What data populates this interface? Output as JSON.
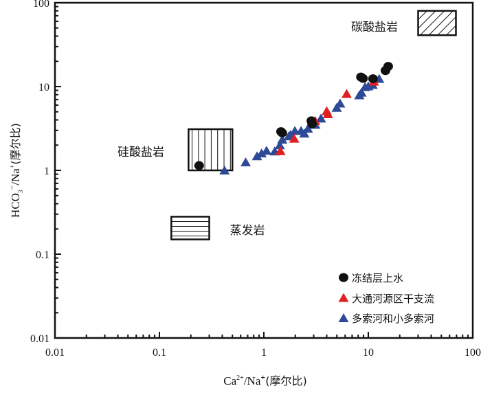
{
  "chart_data": {
    "type": "scatter",
    "x_scale": "log",
    "y_scale": "log",
    "xlim": [
      0.01,
      100
    ],
    "ylim": [
      0.01,
      100
    ],
    "x_ticks": [
      "0.01",
      "0.1",
      "1",
      "10",
      "100"
    ],
    "y_ticks": [
      "0.01",
      "0.1",
      "1",
      "10",
      "100"
    ],
    "xlabel": {
      "base1": "Ca",
      "sup1": "2+",
      "base2": "/Na",
      "sup2": "+",
      "tail": "(摩尔比)"
    },
    "ylabel": {
      "base1": "HCO",
      "sub1": "3",
      "sup1": "−",
      "base2": "/Na",
      "sup2": "+",
      "tail": "(摩尔比)"
    },
    "regions": [
      {
        "label": "碳酸盐岩",
        "pattern": "diagonal",
        "x": [
          30,
          69
        ],
        "y": [
          41,
          80
        ]
      },
      {
        "label": "硅酸盐岩",
        "pattern": "vertical",
        "x": [
          0.19,
          0.5
        ],
        "y": [
          1.0,
          3.1
        ]
      },
      {
        "label": "蒸发岩",
        "pattern": "horizontal",
        "x": [
          0.13,
          0.3
        ],
        "y": [
          0.15,
          0.28
        ]
      }
    ],
    "legend_position": "bottom-right",
    "series": [
      {
        "name": "冻结层上水",
        "marker": "circle",
        "color": "#111111",
        "points": [
          [
            0.24,
            1.14
          ],
          [
            1.46,
            2.9
          ],
          [
            1.5,
            2.8
          ],
          [
            2.85,
            3.9
          ],
          [
            2.9,
            3.6
          ],
          [
            8.5,
            13
          ],
          [
            8.9,
            12.5
          ],
          [
            11.1,
            12.4
          ],
          [
            14.6,
            15.5
          ],
          [
            15.5,
            17.4
          ]
        ]
      },
      {
        "name": "大通河源区干支流",
        "marker": "triangle",
        "color": "#e02020",
        "points": [
          [
            1.44,
            1.7
          ],
          [
            1.95,
            2.4
          ],
          [
            3.1,
            3.9
          ],
          [
            4.0,
            5.1
          ],
          [
            4.1,
            4.7
          ],
          [
            6.2,
            8.2
          ],
          [
            11.3,
            11.5
          ]
        ]
      },
      {
        "name": "多索河和小多索河",
        "marker": "triangle",
        "color": "#2e4a96",
        "points": [
          [
            0.42,
            1.0
          ],
          [
            0.67,
            1.25
          ],
          [
            0.86,
            1.48
          ],
          [
            0.95,
            1.6
          ],
          [
            1.06,
            1.72
          ],
          [
            1.27,
            1.69
          ],
          [
            1.42,
            2.0
          ],
          [
            1.5,
            2.33
          ],
          [
            1.73,
            2.56
          ],
          [
            1.8,
            2.66
          ],
          [
            1.98,
            2.97
          ],
          [
            2.27,
            2.97
          ],
          [
            2.44,
            2.76
          ],
          [
            2.64,
            3.15
          ],
          [
            2.89,
            3.52
          ],
          [
            3.11,
            3.52
          ],
          [
            3.52,
            4.17
          ],
          [
            4.98,
            5.6
          ],
          [
            5.37,
            6.3
          ],
          [
            8.2,
            7.9
          ],
          [
            8.6,
            8.5
          ],
          [
            9.3,
            9.9
          ],
          [
            10,
            10.1
          ],
          [
            11,
            10.5
          ],
          [
            12.7,
            12.4
          ]
        ]
      }
    ]
  }
}
